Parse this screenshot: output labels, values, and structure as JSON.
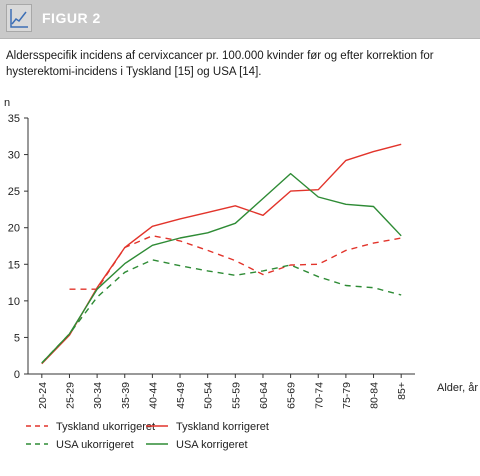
{
  "header": {
    "title": "FIGUR 2",
    "icon": "line-chart-icon"
  },
  "caption": "Aldersspecifik incidens af cervixcancer pr. 100.000 kvinder før og efter korrektion for hysterektomi-incidens i Tyskland [15] og USA [14].",
  "chart_data": {
    "type": "line",
    "ylabel": "n",
    "xlabel": "Alder, år",
    "ylim": [
      0,
      35
    ],
    "yticks": [
      0,
      5,
      10,
      15,
      20,
      25,
      30,
      35
    ],
    "categories": [
      "20-24",
      "25-29",
      "30-34",
      "35-39",
      "40-44",
      "45-49",
      "50-54",
      "55-59",
      "60-64",
      "65-69",
      "70-74",
      "75-79",
      "80-84",
      "85+"
    ],
    "grid": false,
    "legend_position": "bottom",
    "series": [
      {
        "name": "Tyskland ukorrigeret",
        "color": "#e2342b",
        "dash": true,
        "values": [
          null,
          11.6,
          11.6,
          17.3,
          18.9,
          18.2,
          16.9,
          15.5,
          13.6,
          14.9,
          15.0,
          16.9,
          17.9,
          18.6
        ]
      },
      {
        "name": "Tyskland korrigeret",
        "color": "#e2342b",
        "dash": false,
        "values": [
          1.4,
          5.3,
          11.8,
          17.3,
          20.2,
          21.2,
          22.1,
          23.0,
          21.7,
          25.0,
          25.2,
          29.2,
          30.4,
          31.4
        ]
      },
      {
        "name": "USA ukorrigeret",
        "color": "#2e8b35",
        "dash": true,
        "values": [
          1.5,
          5.5,
          10.5,
          13.9,
          15.6,
          14.8,
          14.1,
          13.5,
          14.1,
          14.9,
          13.3,
          12.1,
          11.8,
          10.8
        ]
      },
      {
        "name": "USA korrigeret",
        "color": "#2e8b35",
        "dash": false,
        "values": [
          1.5,
          5.5,
          11.6,
          15.1,
          17.6,
          18.6,
          19.3,
          20.6,
          24.0,
          27.4,
          24.2,
          23.2,
          22.9,
          18.9
        ]
      }
    ]
  }
}
